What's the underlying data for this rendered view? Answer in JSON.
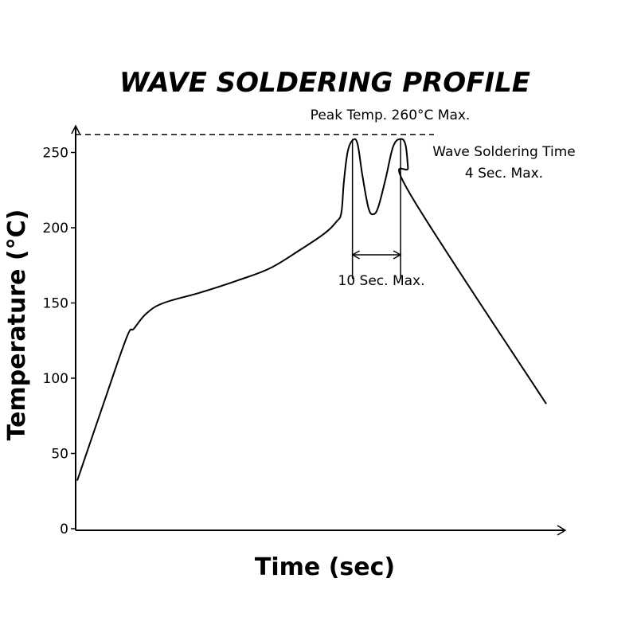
{
  "chart_data": {
    "type": "line",
    "title": "WAVE SOLDERING PROFILE",
    "xlabel": "Time (sec)",
    "ylabel": "Temperature (°C)",
    "ylim": [
      0,
      270
    ],
    "yticks": [
      0,
      50,
      100,
      150,
      200,
      250
    ],
    "xticks": [],
    "grid": false,
    "legend": "none",
    "series": [
      {
        "values": [
          {
            "x": 0,
            "y": 32
          },
          {
            "x": 10,
            "y": 80
          },
          {
            "x": 20,
            "y": 127
          },
          {
            "x": 23,
            "y": 133
          },
          {
            "x": 28,
            "y": 143
          },
          {
            "x": 35,
            "y": 150
          },
          {
            "x": 50,
            "y": 157
          },
          {
            "x": 65,
            "y": 165
          },
          {
            "x": 78,
            "y": 173
          },
          {
            "x": 90,
            "y": 185
          },
          {
            "x": 100,
            "y": 196
          },
          {
            "x": 105,
            "y": 204
          },
          {
            "x": 107,
            "y": 210
          },
          {
            "x": 108,
            "y": 230
          },
          {
            "x": 109.5,
            "y": 250
          },
          {
            "x": 111.5,
            "y": 258
          },
          {
            "x": 113.5,
            "y": 256
          },
          {
            "x": 115.5,
            "y": 235
          },
          {
            "x": 118,
            "y": 213
          },
          {
            "x": 120,
            "y": 209
          },
          {
            "x": 122,
            "y": 214
          },
          {
            "x": 125,
            "y": 233
          },
          {
            "x": 128,
            "y": 254
          },
          {
            "x": 131,
            "y": 259
          },
          {
            "x": 133,
            "y": 255
          },
          {
            "x": 134,
            "y": 240
          },
          {
            "x": 135,
            "y": 222
          },
          {
            "x": 190,
            "y": 83
          }
        ]
      }
    ],
    "annotations": {
      "peak_line_y": 262,
      "peak_label": "Peak Temp. 260°C Max.",
      "wave_label_line1": "Wave Soldering Time",
      "wave_label_line2": "4 Sec. Max.",
      "span_label": "10 Sec. Max.",
      "span_x": [
        111.5,
        131
      ],
      "span_y": 182
    }
  }
}
